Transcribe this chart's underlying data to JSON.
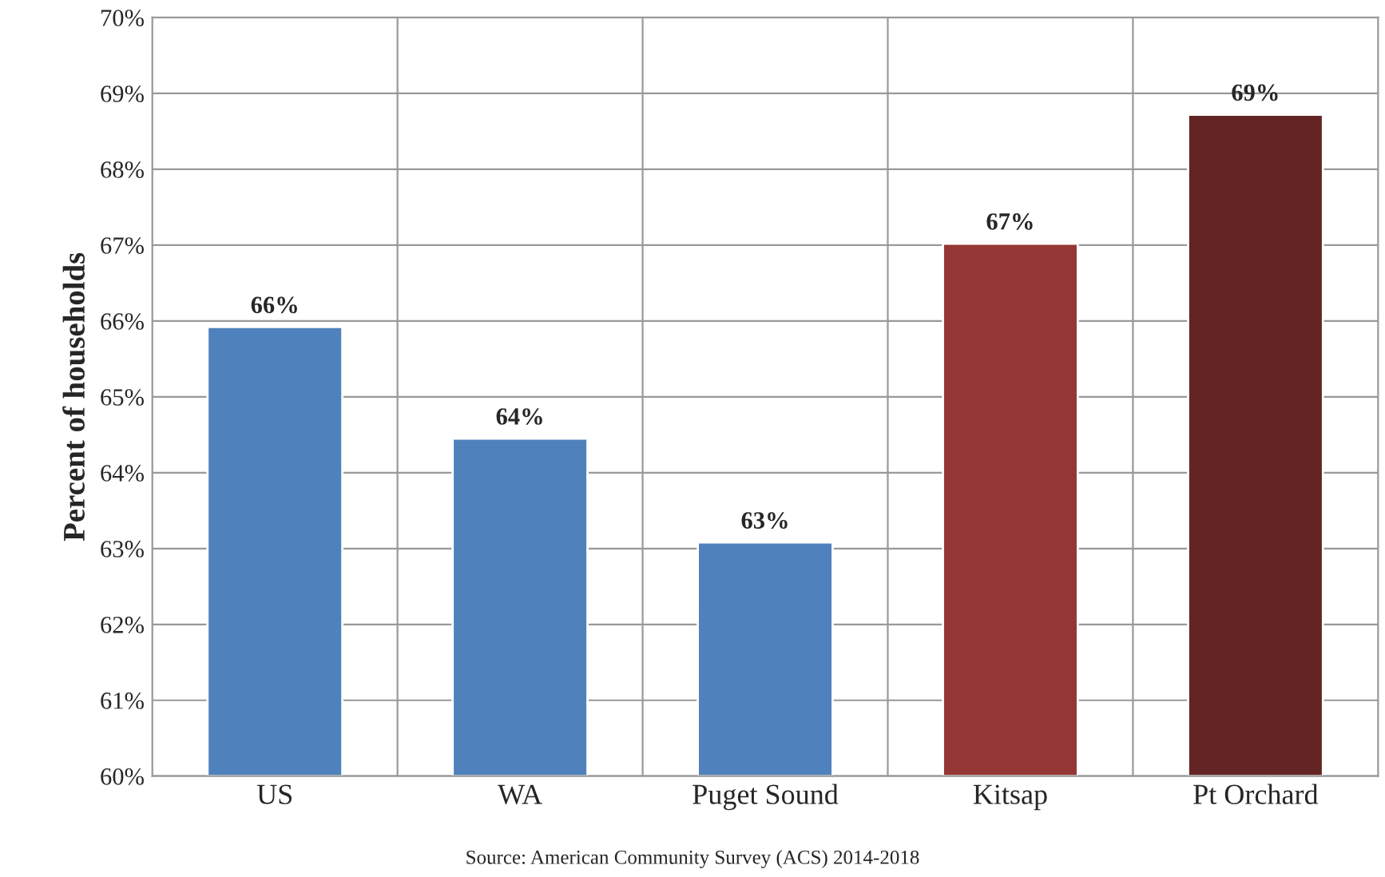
{
  "chart_data": {
    "type": "bar",
    "ylabel": "Percent of households",
    "categories": [
      "US",
      "WA",
      "Puget Sound",
      "Kitsap",
      "Pt Orchard"
    ],
    "values": [
      65.92,
      64.45,
      63.08,
      67.02,
      68.72
    ],
    "colors": [
      "#4f81bd",
      "#4f81bd",
      "#4f81bd",
      "#943634",
      "#632523"
    ],
    "value_labels": [
      "66%",
      "64%",
      "63%",
      "67%",
      "69%"
    ],
    "ylim": [
      60,
      70
    ],
    "yticks": [
      {
        "value": 60,
        "label": "60%"
      },
      {
        "value": 61,
        "label": "61%"
      },
      {
        "value": 62,
        "label": "62%"
      },
      {
        "value": 63,
        "label": "63%"
      },
      {
        "value": 64,
        "label": "64%"
      },
      {
        "value": 65,
        "label": "65%"
      },
      {
        "value": 66,
        "label": "66%"
      },
      {
        "value": 67,
        "label": "67%"
      },
      {
        "value": 68,
        "label": "68%"
      },
      {
        "value": 69,
        "label": "69%"
      },
      {
        "value": 70,
        "label": "70%"
      }
    ],
    "grid": true,
    "annotations": [
      "Source: American Community Survey (ACS) 2014-2018"
    ]
  }
}
